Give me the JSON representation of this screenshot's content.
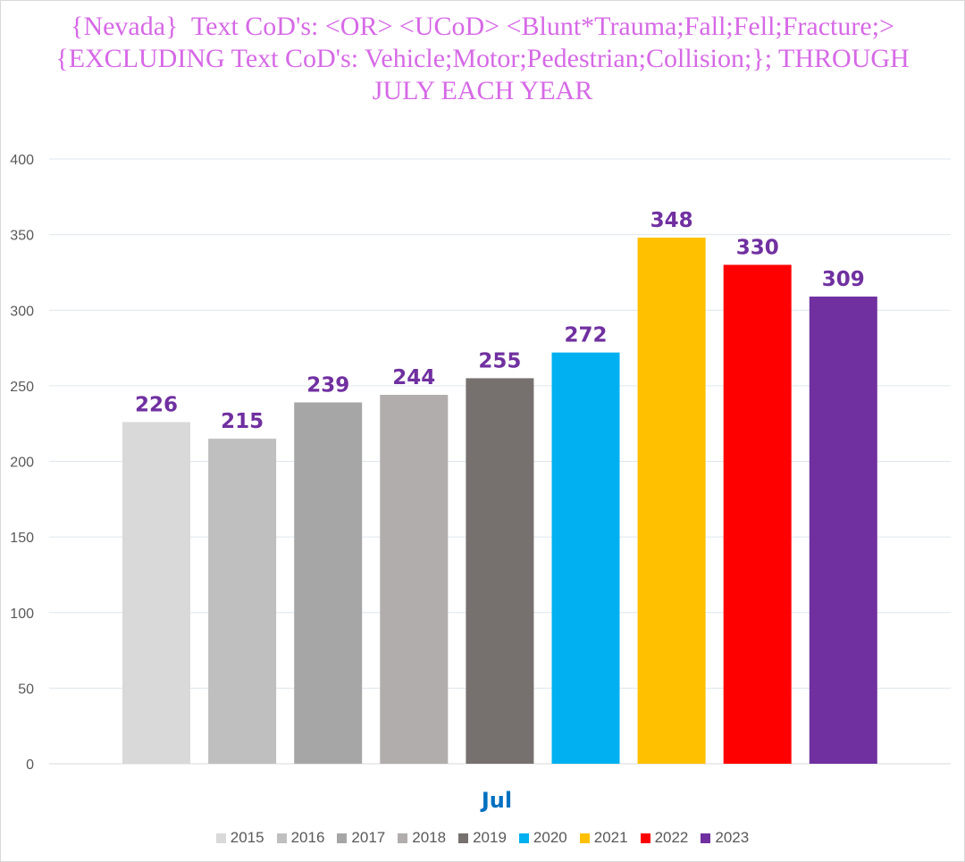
{
  "chart_data": {
    "type": "bar",
    "title": "{Nevada}  Text CoD's: <OR> <UCoD> <Blunt*Trauma;Fall;Fell;Fracture;>{EXCLUDING Text CoD's: Vehicle;Motor;Pedestrian;Collision;}; THROUGH JULY EACH YEAR",
    "category": "Jul",
    "xlabel": "",
    "ylabel": "",
    "ylim": [
      0,
      400
    ],
    "yticks": [
      0,
      50,
      100,
      150,
      200,
      250,
      300,
      350,
      400
    ],
    "grid": true,
    "legend_position": "bottom",
    "series": [
      {
        "name": "2015",
        "value": 226,
        "label": "226",
        "color": "#d9d9d9"
      },
      {
        "name": "2016",
        "value": 215,
        "label": "215",
        "color": "#bfbfbf"
      },
      {
        "name": "2017",
        "value": 239,
        "label": "239",
        "color": "#a6a6a6"
      },
      {
        "name": "2018",
        "value": 244,
        "label": "244",
        "color": "#b1adac"
      },
      {
        "name": "2019",
        "value": 255,
        "label": "255",
        "color": "#76716f"
      },
      {
        "name": "2020",
        "value": 272,
        "label": "272",
        "color": "#00b0f0"
      },
      {
        "name": "2021",
        "value": 348,
        "label": "348",
        "color": "#ffc000"
      },
      {
        "name": "2022",
        "value": 330,
        "label": "330",
        "color": "#ff0000"
      },
      {
        "name": "2023",
        "value": 309,
        "label": "309",
        "color": "#7030a0"
      }
    ]
  }
}
